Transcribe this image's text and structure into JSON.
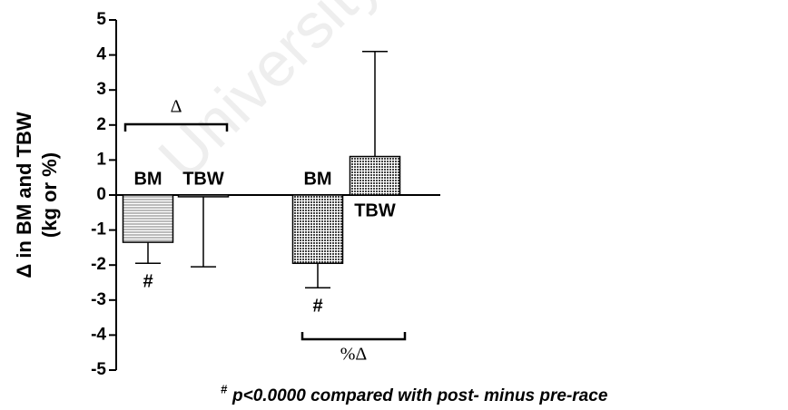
{
  "chart_data": {
    "type": "bar",
    "ylabel": "Δ in BM and TBW",
    "ylabel2": "(kg or %)",
    "categories": [
      "BM",
      "TBW",
      "BM",
      "TBW"
    ],
    "values": [
      -1.35,
      -0.05,
      -1.95,
      1.1
    ],
    "errors": [
      0.6,
      2.0,
      0.7,
      3.0
    ],
    "sig_labels": [
      "#",
      null,
      "#",
      null
    ],
    "groups": [
      "Δ",
      "%Δ"
    ],
    "ylim": [
      -5,
      5
    ],
    "yticks": [
      -5,
      -4,
      -3,
      -2,
      -1,
      0,
      1,
      2,
      3,
      4,
      5
    ],
    "footnote_marker": "#",
    "footnote": "p<0.0000 compared with post- minus pre-race",
    "watermark": "University"
  }
}
